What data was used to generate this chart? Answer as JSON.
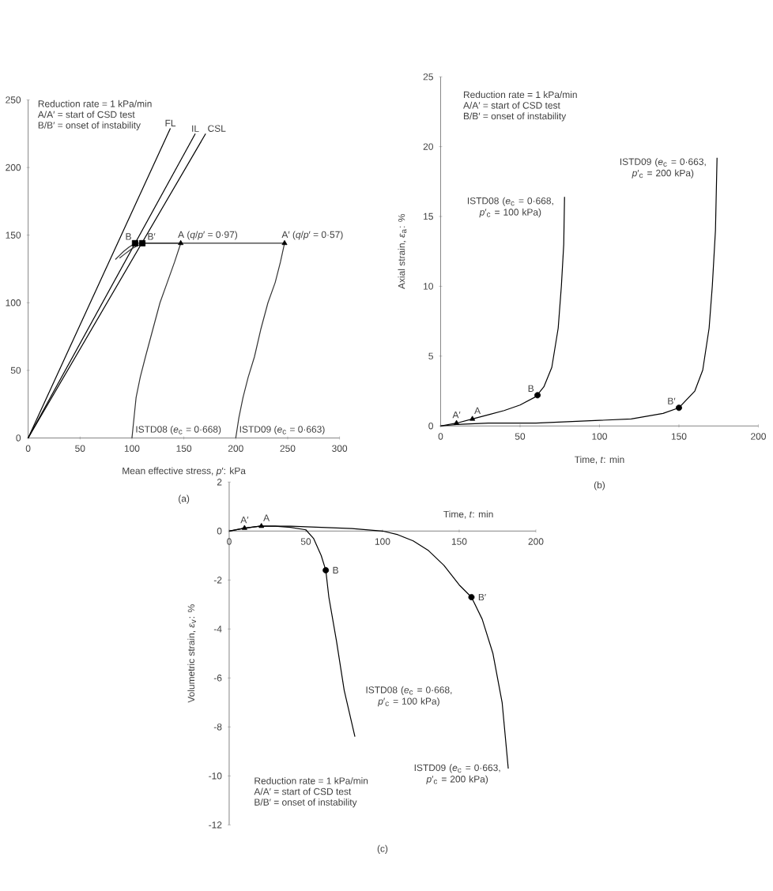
{
  "chart_data": [
    {
      "type": "line",
      "title": "(a)",
      "xlabel": "Mean effective stress, *p*′: kPa",
      "xlim": [
        0,
        300
      ],
      "ylim": [
        0,
        250
      ],
      "xticks": [
        0,
        50,
        100,
        150,
        200,
        250,
        300
      ],
      "yticks": [
        0,
        50,
        100,
        150,
        200,
        250
      ],
      "series": [
        {
          "name": "FL",
          "color": "#000000",
          "x": [
            0,
            137
          ],
          "values": [
            0,
            229
          ]
        },
        {
          "name": "IL",
          "color": "#000000",
          "x": [
            0,
            161
          ],
          "values": [
            0,
            225
          ]
        },
        {
          "name": "CSL",
          "color": "#000000",
          "x": [
            0,
            171
          ],
          "values": [
            0,
            225
          ]
        },
        {
          "name": "ISTD08 (*e*$_{c}$ = 0·668)",
          "color": "#333333",
          "x": [
            100,
            102,
            104,
            108,
            113,
            120,
            127,
            134,
            141,
            147,
            130,
            115,
            103,
            97,
            92,
            88,
            84
          ],
          "values": [
            0,
            15,
            30,
            45,
            60,
            80,
            100,
            115,
            130,
            144,
            144,
            144,
            144,
            141,
            138,
            135,
            132
          ]
        },
        {
          "name": "ISTD09 (*e*$_{c}$ = 0·663)",
          "color": "#333333",
          "x": [
            200,
            203,
            207,
            212,
            218,
            224,
            231,
            238,
            243,
            247,
            220,
            180,
            140,
            110,
            100,
            93,
            88
          ],
          "values": [
            0,
            15,
            30,
            45,
            60,
            80,
            100,
            115,
            130,
            144,
            144,
            144,
            144,
            144,
            140,
            136,
            133
          ]
        },
        {
          "type": "scatter",
          "marker": "triangle",
          "color": "#000000",
          "x": [
            147,
            247
          ],
          "values": [
            144,
            144
          ]
        },
        {
          "type": "scatter",
          "marker": "square",
          "color": "#000000",
          "x": [
            103,
            110
          ],
          "values": [
            144,
            144
          ]
        }
      ],
      "annotations": [
        "Reduction rate = 1 kPa/min",
        "A/A′ = start of CSD test",
        "B/B′ = onset of instability",
        {
          "text": "B",
          "x": 103,
          "y": 144
        },
        {
          "text": "B′",
          "x": 110,
          "y": 144
        },
        {
          "text": "A (*q*/*p*′ = 0·97)",
          "x": 147,
          "y": 144
        },
        {
          "text": "A′ (*q*/*p*′ = 0·57)",
          "x": 247,
          "y": 144
        }
      ]
    },
    {
      "type": "line",
      "title": "(b)",
      "xlabel": "Time, *t*: min",
      "ylabel": "Axial strain, *ε*$_{a}$: %",
      "xlim": [
        0,
        200
      ],
      "ylim": [
        0,
        25
      ],
      "xticks": [
        0,
        50,
        100,
        150,
        200
      ],
      "yticks": [
        0,
        5,
        10,
        15,
        20,
        25
      ],
      "series": [
        {
          "name": "ISTD08 (*e*$_{c}$ = 0·668, *p*′$_{c}$ = 100 kPa)",
          "color": "#000000",
          "x": [
            0,
            10,
            20,
            30,
            40,
            50,
            60,
            65,
            70,
            74,
            76,
            77.5,
            78
          ],
          "values": [
            0,
            0.2,
            0.5,
            0.8,
            1.1,
            1.5,
            2.1,
            2.8,
            4.2,
            7,
            10,
            13,
            16.4
          ]
        },
        {
          "name": "ISTD09 (*e*$_{c}$ = 0·663, *p*′$_{c}$ = 200 kPa)",
          "color": "#000000",
          "x": [
            0,
            10,
            30,
            60,
            100,
            120,
            140,
            150,
            160,
            165,
            169,
            171,
            173,
            174
          ],
          "values": [
            0,
            0.1,
            0.2,
            0.2,
            0.4,
            0.5,
            0.9,
            1.3,
            2.5,
            4,
            7,
            10,
            14,
            19.2
          ]
        },
        {
          "type": "scatter",
          "marker": "triangle",
          "color": "#000000",
          "x": [
            10,
            20
          ],
          "values": [
            0.2,
            0.5
          ]
        },
        {
          "type": "scatter",
          "marker": "circle",
          "color": "#000000",
          "x": [
            61,
            150
          ],
          "values": [
            2.2,
            1.3
          ]
        }
      ],
      "annotations": [
        "Reduction rate = 1 kPa/min",
        "A/A′ = start of CSD test",
        "B/B′ = onset of instability",
        {
          "text": "A′",
          "x": 10,
          "y": 0.2
        },
        {
          "text": "A",
          "x": 20,
          "y": 0.5
        },
        {
          "text": "B",
          "x": 61,
          "y": 2.2
        },
        {
          "text": "B′",
          "x": 150,
          "y": 1.3
        }
      ]
    },
    {
      "type": "line",
      "title": "(c)",
      "xlabel": "Time, *t*: min",
      "ylabel": "Volumetric strain, *ε*$_{v}$: %",
      "xlim": [
        0,
        200
      ],
      "ylim": [
        -12,
        2
      ],
      "xticks": [
        0,
        50,
        100,
        150,
        200
      ],
      "yticks": [
        -12,
        -10,
        -8,
        -6,
        -4,
        -2,
        0,
        2
      ],
      "series": [
        {
          "name": "ISTD08 (*e*$_{c}$ = 0·668, *p*′$_{c}$ = 100 kPa)",
          "color": "#000000",
          "x": [
            0,
            10,
            20,
            30,
            40,
            50,
            55,
            60,
            63,
            65,
            70,
            75,
            82
          ],
          "values": [
            0,
            0.12,
            0.2,
            0.2,
            0.15,
            0.05,
            -0.3,
            -1,
            -1.6,
            -2.7,
            -4.5,
            -6.5,
            -8.4
          ]
        },
        {
          "name": "ISTD09 (*e*$_{c}$ = 0·663, *p*′$_{c}$ = 200 kPa)",
          "color": "#000000",
          "x": [
            0,
            10,
            20,
            40,
            60,
            80,
            100,
            110,
            120,
            130,
            140,
            150,
            158,
            165,
            172,
            178,
            182
          ],
          "values": [
            0,
            0.12,
            0.2,
            0.2,
            0.15,
            0.1,
            0,
            -0.15,
            -0.4,
            -0.8,
            -1.4,
            -2.2,
            -2.7,
            -3.6,
            -5,
            -7,
            -9.7
          ]
        },
        {
          "type": "scatter",
          "marker": "triangle",
          "color": "#000000",
          "x": [
            10,
            21
          ],
          "values": [
            0.12,
            0.2
          ]
        },
        {
          "type": "scatter",
          "marker": "circle",
          "color": "#000000",
          "x": [
            63,
            158
          ],
          "values": [
            -1.6,
            -2.7
          ]
        }
      ],
      "annotations": [
        "Reduction rate = 1 kPa/min",
        "A/A′ = start of CSD test",
        "B/B′ = onset of instability",
        {
          "text": "A′",
          "x": 10,
          "y": 0.12
        },
        {
          "text": "A",
          "x": 21,
          "y": 0.2
        },
        {
          "text": "B",
          "x": 63,
          "y": -1.6
        },
        {
          "text": "B′",
          "x": 158,
          "y": -2.7
        }
      ]
    }
  ]
}
